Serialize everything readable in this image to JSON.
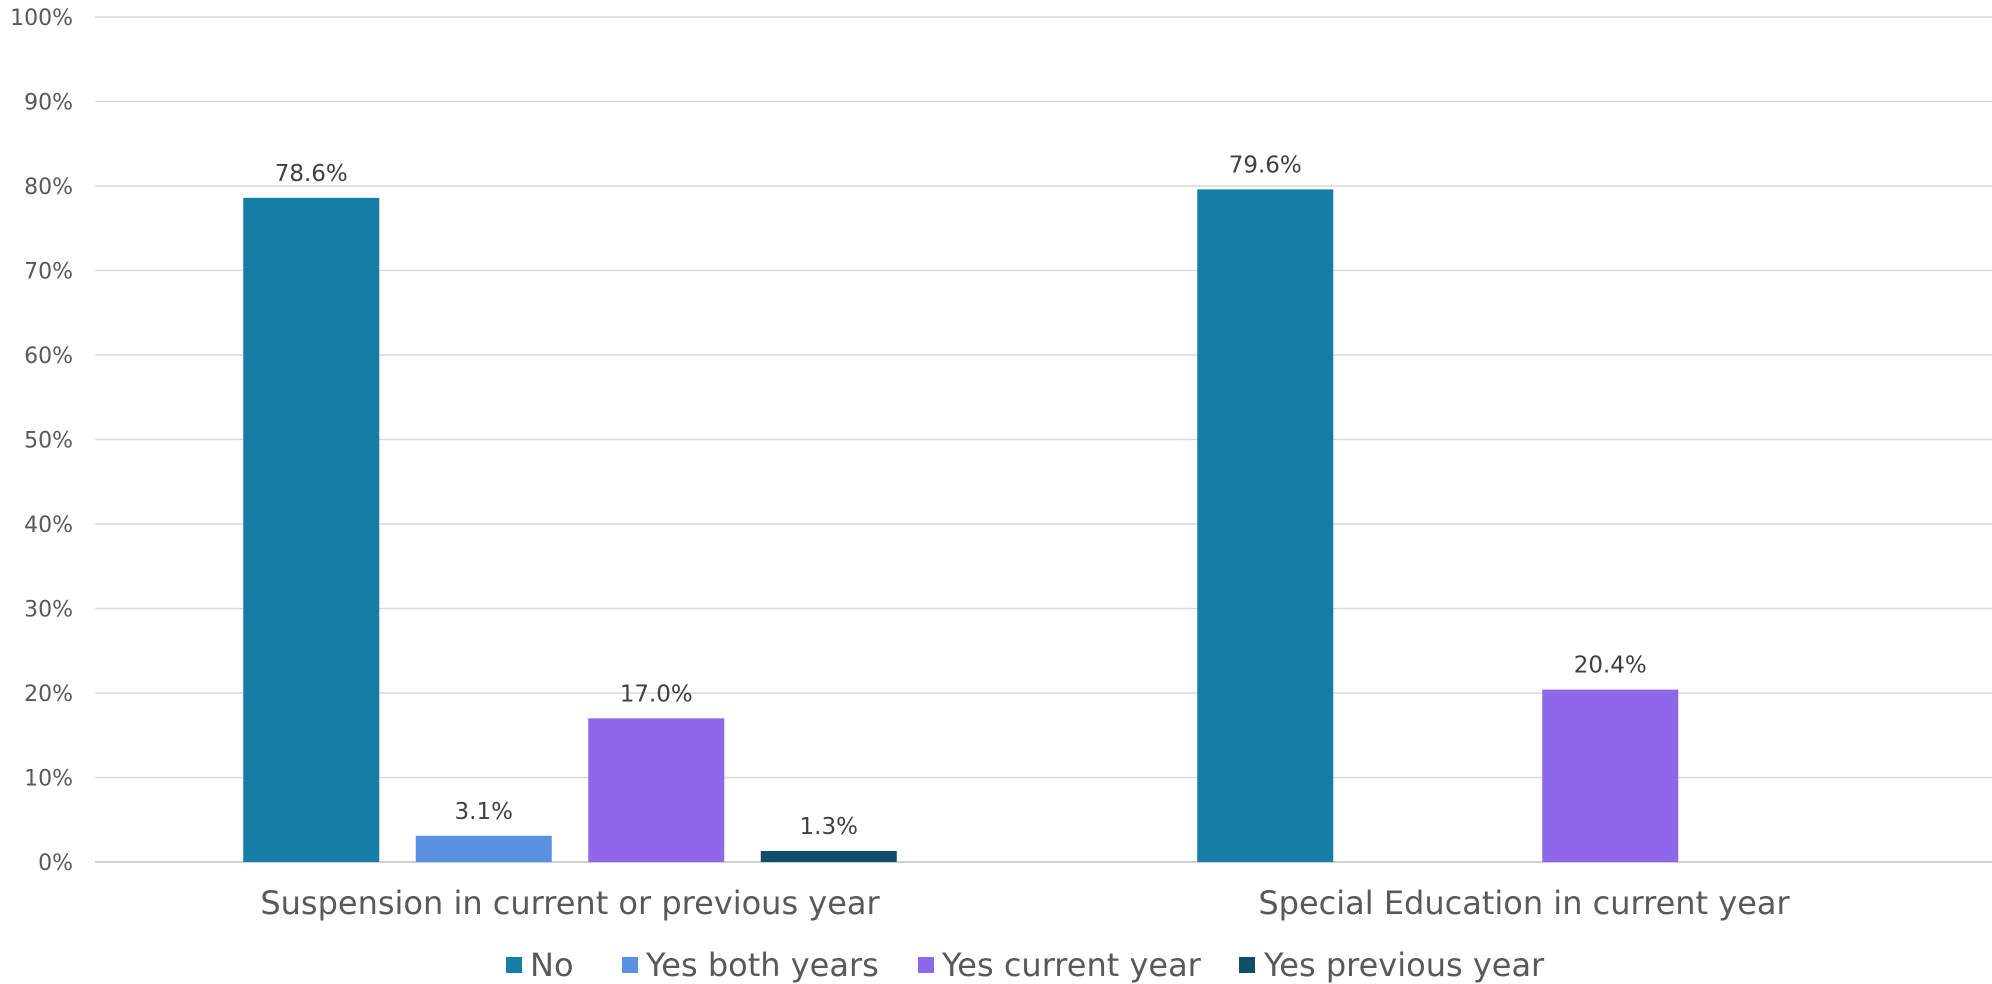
{
  "chart_data": {
    "type": "bar",
    "title": "",
    "xlabel": "",
    "ylabel": "",
    "ylim": [
      0,
      100
    ],
    "y_ticks": [
      "0%",
      "10%",
      "20%",
      "30%",
      "40%",
      "50%",
      "60%",
      "70%",
      "80%",
      "90%",
      "100%"
    ],
    "grid": true,
    "legend_position": "bottom",
    "categories": [
      "Suspension in current or previous year",
      "Special Education in current year"
    ],
    "series": [
      {
        "name": "No",
        "color": "#147ea7",
        "values": [
          78.6,
          79.6
        ],
        "labels": [
          "78.6%",
          "79.6%"
        ]
      },
      {
        "name": "Yes both years",
        "color": "#5b91e1",
        "values": [
          3.1,
          null
        ],
        "labels": [
          "3.1%",
          ""
        ]
      },
      {
        "name": "Yes current year",
        "color": "#8e68e9",
        "values": [
          17.0,
          20.4
        ],
        "labels": [
          "17.0%",
          "20.4%"
        ]
      },
      {
        "name": "Yes previous year",
        "color": "#0f4e66",
        "values": [
          1.3,
          null
        ],
        "labels": [
          "1.3%",
          ""
        ]
      }
    ]
  }
}
